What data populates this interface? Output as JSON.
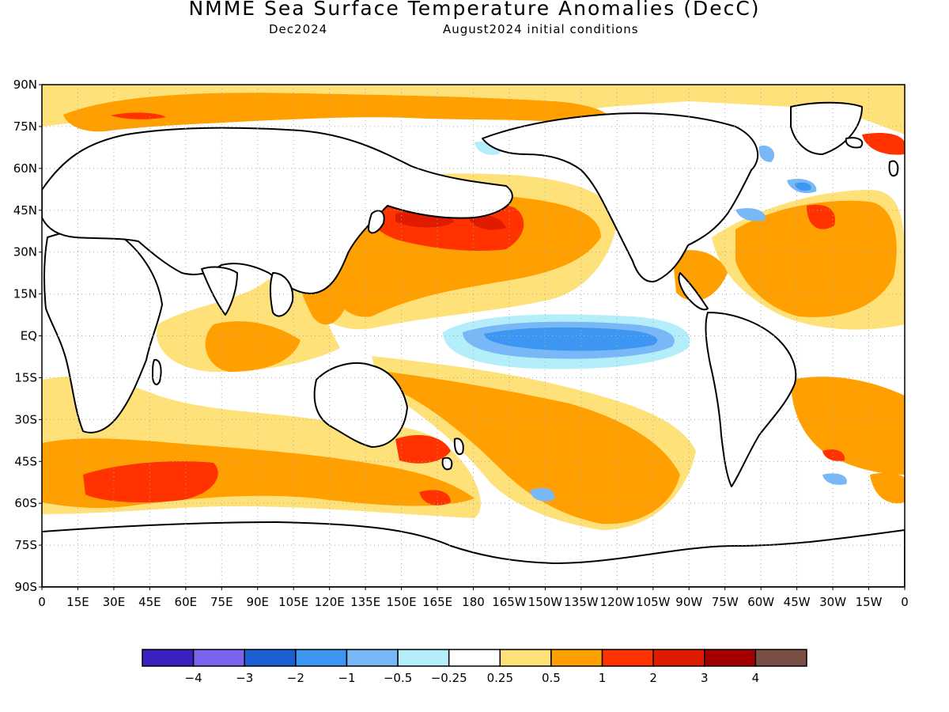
{
  "title": "NMME Sea Surface Temperature Anomalies (DecC)",
  "subtitle_left": "Dec2024",
  "subtitle_right": "August2024 initial conditions",
  "map": {
    "lat_labels": [
      "90N",
      "75N",
      "60N",
      "45N",
      "30N",
      "15N",
      "EQ",
      "15S",
      "30S",
      "45S",
      "60S",
      "75S",
      "90S"
    ],
    "lon_labels": [
      "0",
      "15E",
      "30E",
      "45E",
      "60E",
      "75E",
      "90E",
      "105E",
      "120E",
      "135E",
      "150E",
      "165E",
      "180",
      "165W",
      "150W",
      "135W",
      "120W",
      "105W",
      "90W",
      "75W",
      "60W",
      "45W",
      "30W",
      "15W",
      "0"
    ]
  },
  "legend": {
    "colors": [
      "#3b1fbf",
      "#7c64ee",
      "#1a60d0",
      "#3c96f2",
      "#78b8f6",
      "#b4eefa",
      "#ffffff",
      "#ffe17a",
      "#ffa000",
      "#ff3200",
      "#e01c00",
      "#a50000",
      "#7a5046"
    ],
    "labels": [
      "−4",
      "−3",
      "−2",
      "−1",
      "−0.5",
      "−0.25",
      "0.25",
      "0.5",
      "1",
      "2",
      "3",
      "4"
    ]
  }
}
